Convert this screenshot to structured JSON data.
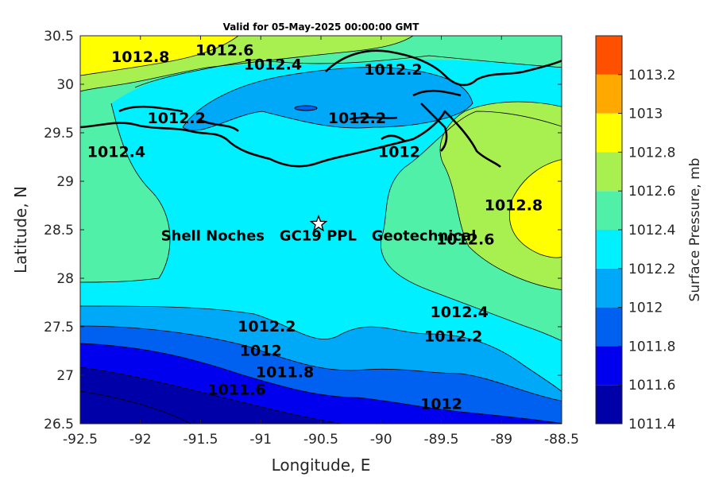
{
  "chart_data": {
    "type": "heatmap",
    "title": "Valid for 05-May-2025 00:00:00 GMT",
    "xlabel": "Longitude, E",
    "ylabel": "Latitude, N",
    "xlim": [
      -92.5,
      -88.5
    ],
    "ylim": [
      26.5,
      30.5
    ],
    "x_ticks": [
      "-92.5",
      "-92",
      "-91.5",
      "-91",
      "-90.5",
      "-90",
      "-89.5",
      "-89",
      "-88.5"
    ],
    "y_ticks": [
      "30.5",
      "30",
      "29.5",
      "29",
      "28.5",
      "28",
      "27.5",
      "27",
      "26.5"
    ],
    "colorbar": {
      "label": "Surface Pressure, mb",
      "ticks": [
        "1013.2",
        "1013",
        "1012.8",
        "1012.6",
        "1012.4",
        "1012.2",
        "1012",
        "1011.8",
        "1011.6",
        "1011.4"
      ],
      "levels": [
        {
          "range": [
            1011.4,
            1011.6
          ],
          "color": "#0000a8"
        },
        {
          "range": [
            1011.6,
            1011.8
          ],
          "color": "#0000ee"
        },
        {
          "range": [
            1011.8,
            1012.0
          ],
          "color": "#0060f0"
        },
        {
          "range": [
            1012.0,
            1012.2
          ],
          "color": "#00a8f8"
        },
        {
          "range": [
            1012.2,
            1012.4
          ],
          "color": "#00f0ff"
        },
        {
          "range": [
            1012.4,
            1012.6
          ],
          "color": "#50f0a8"
        },
        {
          "range": [
            1012.6,
            1012.8
          ],
          "color": "#a8f050"
        },
        {
          "range": [
            1012.8,
            1013.0
          ],
          "color": "#ffff00"
        },
        {
          "range": [
            1013.0,
            1013.2
          ],
          "color": "#ffa800"
        },
        {
          "range": [
            1013.2,
            1013.4
          ],
          "color": "#ff5000"
        }
      ]
    },
    "contour_labels": [
      {
        "text": "1012.8",
        "lon": -92.0,
        "lat": 30.23
      },
      {
        "text": "1012.6",
        "lon": -91.3,
        "lat": 30.3
      },
      {
        "text": "1012.4",
        "lon": -90.9,
        "lat": 30.15
      },
      {
        "text": "1012.2",
        "lon": -89.9,
        "lat": 30.1
      },
      {
        "text": "1012.2",
        "lon": -91.7,
        "lat": 29.6
      },
      {
        "text": "1012.4",
        "lon": -92.2,
        "lat": 29.25
      },
      {
        "text": "1012.2",
        "lon": -90.2,
        "lat": 29.6
      },
      {
        "text": "1012",
        "lon": -89.85,
        "lat": 29.25
      },
      {
        "text": "1012.8",
        "lon": -88.9,
        "lat": 28.7
      },
      {
        "text": "1012.6",
        "lon": -89.3,
        "lat": 28.35
      },
      {
        "text": "1012.4",
        "lon": -89.35,
        "lat": 27.6
      },
      {
        "text": "1012.2",
        "lon": -89.4,
        "lat": 27.35
      },
      {
        "text": "1012.2",
        "lon": -90.95,
        "lat": 27.45
      },
      {
        "text": "1012",
        "lon": -91.0,
        "lat": 27.2
      },
      {
        "text": "1011.8",
        "lon": -90.8,
        "lat": 26.98
      },
      {
        "text": "1011.6",
        "lon": -91.2,
        "lat": 26.8
      },
      {
        "text": "1012",
        "lon": -89.5,
        "lat": 26.65
      }
    ],
    "site": {
      "label": "Shell Noches   GC19 PPL   Geotechnical",
      "lon": -90.52,
      "lat": 28.56,
      "marker": "star"
    }
  }
}
